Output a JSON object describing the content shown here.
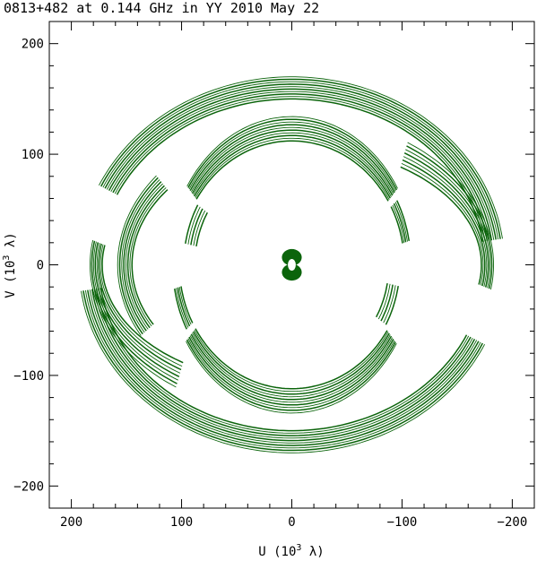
{
  "chart_data": {
    "type": "scatter",
    "title": "0813+482 at 0.144 GHz in YY  2010 May 22",
    "xlabel": {
      "prefix": "U (10",
      "sup": "3",
      "suffix": " λ)"
    },
    "ylabel": {
      "prefix": "V (10",
      "sup": "3",
      "suffix": " λ)"
    },
    "xlim": [
      220,
      -220
    ],
    "ylim": [
      -220,
      220
    ],
    "xticks": [
      200,
      100,
      0,
      -100,
      -200
    ],
    "xtick_labels": [
      "200",
      "100",
      "0",
      "−100",
      "−200"
    ],
    "yticks": [
      200,
      100,
      0,
      -100,
      -200
    ],
    "yticks_labels": [
      "200",
      "100",
      "0",
      "−100",
      "−200"
    ],
    "minor_tick_step": 20,
    "grid": false,
    "color": "#0b640b",
    "tracks": [
      {
        "a_range": [
          175,
          193
        ],
        "b_range": [
          150,
          170
        ],
        "count": 10,
        "theta": [
          25,
          172
        ],
        "sym": true
      },
      {
        "a_range": [
          172,
          183
        ],
        "b_range": [
          108,
          135
        ],
        "count": 8,
        "theta": [
          -55,
          10
        ],
        "sym": true
      },
      {
        "a_range": [
          102,
          112
        ],
        "b_range": [
          112,
          134
        ],
        "count": 10,
        "theta": [
          32,
          150
        ],
        "sym": true
      },
      {
        "a_range": [
          102,
          108
        ],
        "b_range": [
          112,
          124
        ],
        "count": 5,
        "theta": [
          152,
          170
        ],
        "sym": true
      },
      {
        "a_range": [
          145,
          158
        ],
        "b_range": [
          108,
          128
        ],
        "count": 8,
        "theta": [
          -30,
          40
        ],
        "sym": false
      },
      {
        "a_range": [
          88,
          98
        ],
        "b_range": [
          96,
          110
        ],
        "count": 5,
        "theta": [
          10,
          30
        ],
        "sym": true
      }
    ],
    "center_blob": {
      "u": 0,
      "v": 0,
      "half_width": 9,
      "half_height": 15
    }
  }
}
